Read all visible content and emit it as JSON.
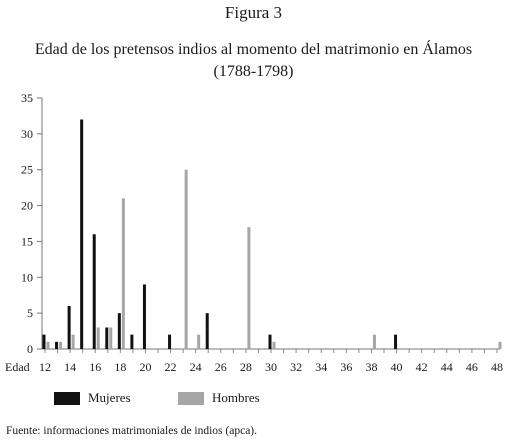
{
  "figure_label": "Figura 3",
  "title_line1": "Edad de los pretensos indios al momento del matrimonio en Álamos",
  "title_line2": "(1788-1798)",
  "source_note": "Fuente: informaciones matrimoniales de indios (apca).",
  "colors": {
    "mujeres": "#111111",
    "hombres": "#a6a6a6"
  },
  "chart_data": {
    "type": "bar",
    "xlabel": "Edad",
    "ylabel": "",
    "ylim": [
      0,
      35
    ],
    "y_ticks": [
      0,
      5,
      10,
      15,
      20,
      25,
      30,
      35
    ],
    "x_tick_labels": [
      12,
      14,
      16,
      18,
      20,
      22,
      24,
      26,
      28,
      30,
      32,
      34,
      36,
      38,
      40,
      42,
      44,
      46,
      48
    ],
    "categories": [
      12,
      13,
      14,
      15,
      16,
      17,
      18,
      19,
      20,
      21,
      22,
      23,
      24,
      25,
      26,
      27,
      28,
      29,
      30,
      31,
      32,
      33,
      34,
      35,
      36,
      37,
      38,
      39,
      40,
      41,
      42,
      43,
      44,
      45,
      46,
      47,
      48
    ],
    "series": [
      {
        "name": "Mujeres",
        "values": [
          2,
          1,
          6,
          32,
          16,
          3,
          5,
          2,
          9,
          0,
          2,
          0,
          0,
          5,
          0,
          0,
          0,
          0,
          2,
          0,
          0,
          0,
          0,
          0,
          0,
          0,
          0,
          0,
          2,
          0,
          0,
          0,
          0,
          0,
          0,
          0,
          0
        ]
      },
      {
        "name": "Hombres",
        "values": [
          1,
          1,
          2,
          0,
          3,
          3,
          21,
          0,
          0,
          0,
          0,
          25,
          2,
          0,
          0,
          0,
          17,
          0,
          1,
          0,
          0,
          0,
          0,
          0,
          0,
          0,
          2,
          0,
          0,
          0,
          0,
          0,
          0,
          0,
          0,
          0,
          1
        ]
      }
    ],
    "legend_position": "bottom-left",
    "grid": false
  }
}
